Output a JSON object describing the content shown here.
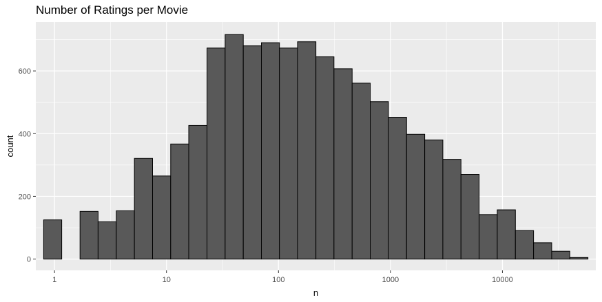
{
  "chart_data": {
    "type": "bar",
    "title": "Number of Ratings per Movie",
    "xlabel": "n",
    "ylabel": "count",
    "x_scale": "log10",
    "grid": true,
    "x_ticks": [
      1,
      10,
      100,
      1000,
      10000
    ],
    "x_tick_labels": [
      "1",
      "10",
      "100",
      "1000",
      "10000"
    ],
    "y_ticks": [
      0,
      200,
      400,
      600
    ],
    "y_tick_labels": [
      "0",
      "200",
      "400",
      "600"
    ],
    "ylim": [
      0,
      720
    ],
    "bins": [
      {
        "x0": 0.8,
        "x1": 1.16,
        "count": 125
      },
      {
        "x0": 1.16,
        "x1": 1.69,
        "count": 0
      },
      {
        "x0": 1.69,
        "x1": 2.45,
        "count": 152
      },
      {
        "x0": 2.45,
        "x1": 3.56,
        "count": 119
      },
      {
        "x0": 3.56,
        "x1": 5.17,
        "count": 154
      },
      {
        "x0": 5.17,
        "x1": 7.51,
        "count": 321
      },
      {
        "x0": 7.51,
        "x1": 10.9,
        "count": 265
      },
      {
        "x0": 10.9,
        "x1": 15.8,
        "count": 367
      },
      {
        "x0": 15.8,
        "x1": 23.0,
        "count": 426
      },
      {
        "x0": 23.0,
        "x1": 33.4,
        "count": 673
      },
      {
        "x0": 33.4,
        "x1": 48.5,
        "count": 716
      },
      {
        "x0": 48.5,
        "x1": 70.4,
        "count": 680
      },
      {
        "x0": 70.4,
        "x1": 102,
        "count": 690
      },
      {
        "x0": 102,
        "x1": 148,
        "count": 673
      },
      {
        "x0": 148,
        "x1": 216,
        "count": 693
      },
      {
        "x0": 216,
        "x1": 313,
        "count": 645
      },
      {
        "x0": 313,
        "x1": 455,
        "count": 607
      },
      {
        "x0": 455,
        "x1": 660,
        "count": 561
      },
      {
        "x0": 660,
        "x1": 959,
        "count": 502
      },
      {
        "x0": 959,
        "x1": 1393,
        "count": 452
      },
      {
        "x0": 1393,
        "x1": 2023,
        "count": 398
      },
      {
        "x0": 2023,
        "x1": 2937,
        "count": 380
      },
      {
        "x0": 2937,
        "x1": 4265,
        "count": 318
      },
      {
        "x0": 4265,
        "x1": 6193,
        "count": 270
      },
      {
        "x0": 6193,
        "x1": 8992,
        "count": 142
      },
      {
        "x0": 8992,
        "x1": 13058,
        "count": 157
      },
      {
        "x0": 13058,
        "x1": 18961,
        "count": 91
      },
      {
        "x0": 18961,
        "x1": 27533,
        "count": 52
      },
      {
        "x0": 27533,
        "x1": 39980,
        "count": 25
      },
      {
        "x0": 39980,
        "x1": 58052,
        "count": 5
      }
    ],
    "colors": {
      "panel": "#ebebeb",
      "grid_major": "#ffffff",
      "bar_fill": "#595959",
      "bar_stroke": "#000000",
      "tick_text": "#4d4d4d",
      "tick_mark": "#333333"
    }
  }
}
